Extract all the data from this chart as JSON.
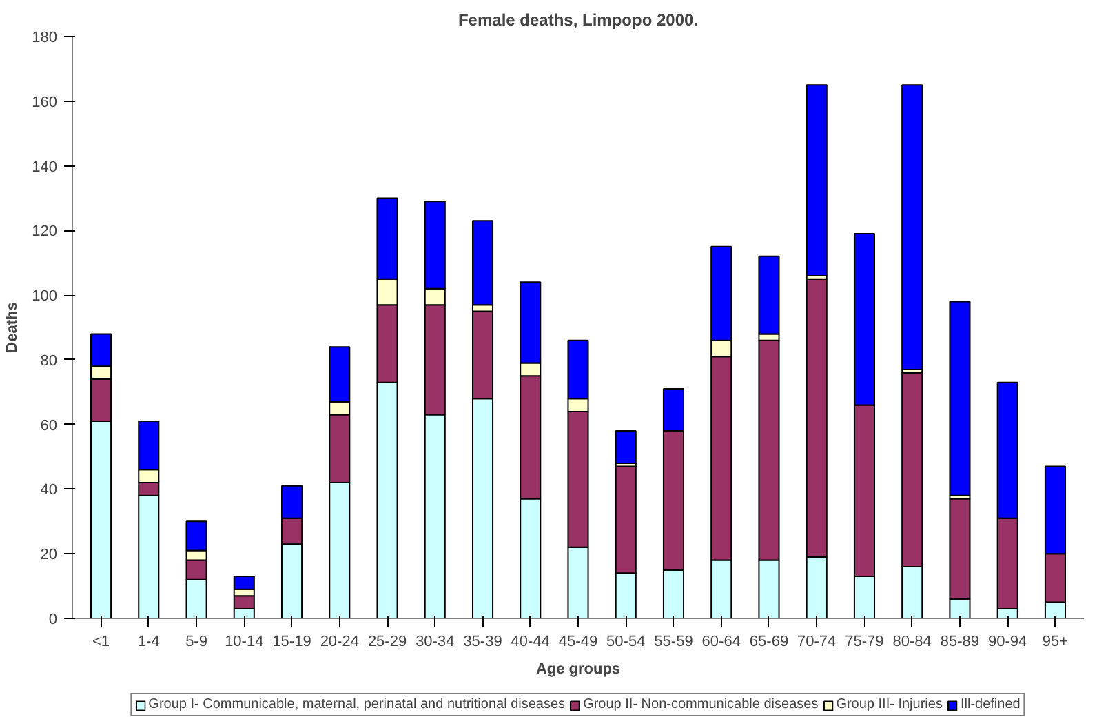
{
  "chart_data": {
    "type": "bar",
    "title": "Female deaths, Limpopo 2000.",
    "xlabel": "Age groups",
    "ylabel": "Deaths",
    "categories": [
      "<1",
      "1-4",
      "5-9",
      "10-14",
      "15-19",
      "20-24",
      "25-29",
      "30-34",
      "35-39",
      "40-44",
      "45-49",
      "50-54",
      "55-59",
      "60-64",
      "65-69",
      "70-74",
      "75-79",
      "80-84",
      "85-89",
      "90-94",
      "95+"
    ],
    "stacked": true,
    "ylim": [
      0,
      180
    ],
    "yticks": [
      0,
      20,
      40,
      60,
      80,
      100,
      120,
      140,
      160,
      180
    ],
    "grid": false,
    "legend": "bottom",
    "series": [
      {
        "name": "Group I- Communicable, maternal, perinatal and nutritional diseases",
        "color": "#ccffff",
        "values": [
          61,
          38,
          12,
          3,
          23,
          42,
          73,
          63,
          68,
          37,
          22,
          14,
          15,
          18,
          18,
          19,
          13,
          16,
          6,
          3,
          5
        ]
      },
      {
        "name": "Group II- Non-communicable diseases",
        "color": "#993366",
        "values": [
          13,
          4,
          6,
          4,
          8,
          21,
          24,
          34,
          27,
          38,
          42,
          33,
          43,
          63,
          68,
          86,
          53,
          60,
          31,
          28,
          15
        ]
      },
      {
        "name": "Group III- Injuries",
        "color": "#ffffcc",
        "values": [
          4,
          4,
          3,
          2,
          0,
          4,
          8,
          5,
          2,
          4,
          4,
          1,
          0,
          5,
          2,
          1,
          0,
          1,
          1,
          0,
          0
        ]
      },
      {
        "name": "Ill-defined",
        "color": "#0000ff",
        "values": [
          10,
          15,
          9,
          4,
          10,
          17,
          25,
          27,
          26,
          25,
          18,
          10,
          13,
          29,
          24,
          59,
          53,
          88,
          60,
          42,
          27
        ]
      }
    ]
  }
}
